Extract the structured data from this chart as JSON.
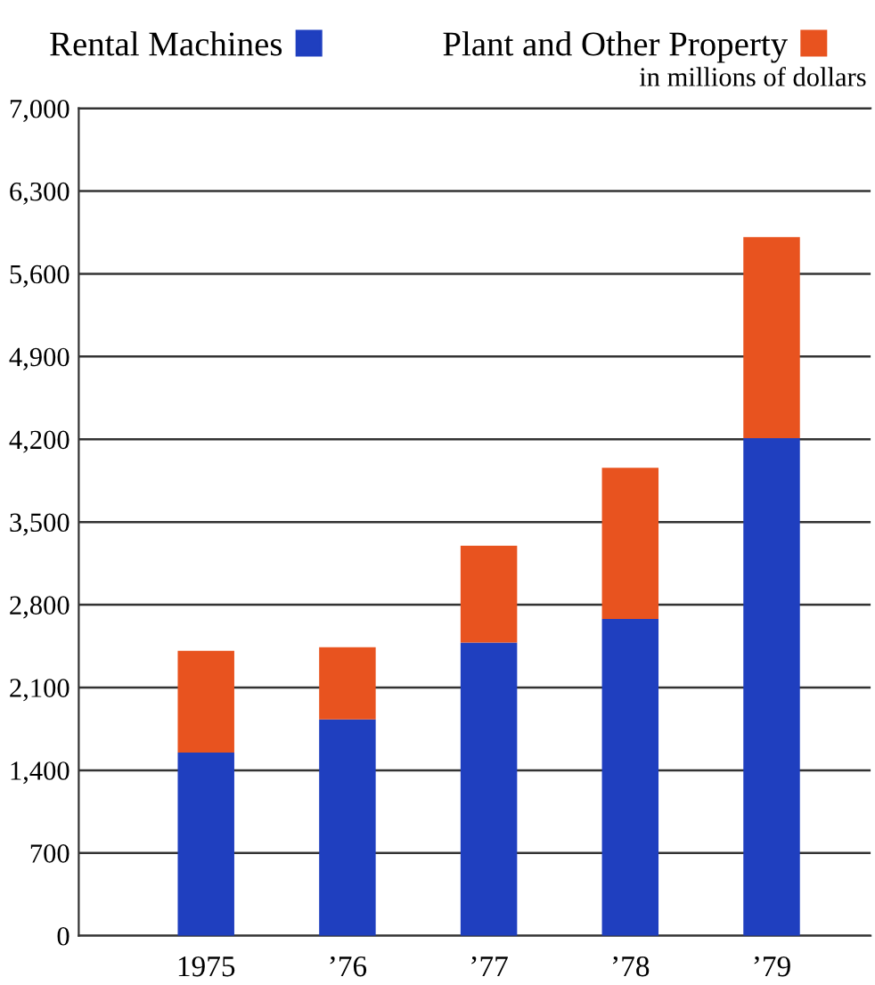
{
  "chart_data": {
    "type": "bar",
    "stacked": true,
    "categories": [
      "1975",
      "’76",
      "’77",
      "’78",
      "’79"
    ],
    "series": [
      {
        "name": "Rental Machines",
        "color": "#1f3fbf",
        "values": [
          1550,
          1830,
          2480,
          2680,
          4210
        ]
      },
      {
        "name": "Plant and Other Property",
        "color": "#e8531f",
        "values": [
          860,
          610,
          820,
          1280,
          1700
        ]
      }
    ],
    "ylim": [
      0,
      7000
    ],
    "yticks": [
      {
        "value": 0,
        "label": "0"
      },
      {
        "value": 700,
        "label": "700"
      },
      {
        "value": 1400,
        "label": "1,400"
      },
      {
        "value": 2100,
        "label": "2,100"
      },
      {
        "value": 2800,
        "label": "2,800"
      },
      {
        "value": 3500,
        "label": "3,500"
      },
      {
        "value": 4200,
        "label": "4,200"
      },
      {
        "value": 4900,
        "label": "4,900"
      },
      {
        "value": 5600,
        "label": "5,600"
      },
      {
        "value": 6300,
        "label": "6,300"
      },
      {
        "value": 7000,
        "label": "7,000"
      }
    ],
    "grid": "y",
    "legend": "top",
    "annotations": [
      "in millions of dollars"
    ]
  }
}
